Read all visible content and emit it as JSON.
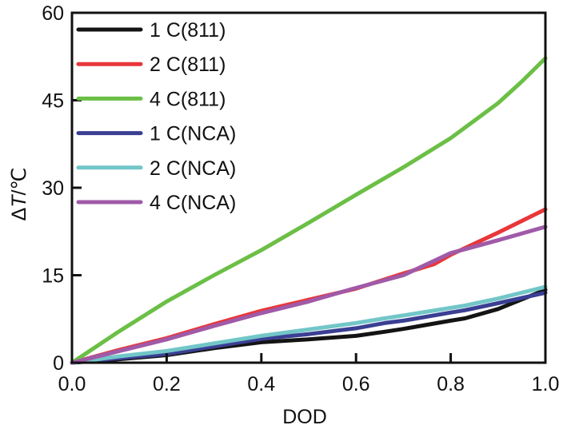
{
  "chart_data": {
    "type": "line",
    "title": "",
    "xlabel": "DOD",
    "ylabel_prefix": "Δ",
    "ylabel_var": "T",
    "ylabel_suffix": "/℃",
    "xlim": [
      0.0,
      1.0
    ],
    "ylim": [
      0,
      60
    ],
    "xticks": [
      0.0,
      0.2,
      0.4,
      0.6,
      0.8,
      1.0
    ],
    "xtick_labels": [
      "0.0",
      "0.2",
      "0.4",
      "0.6",
      "0.8",
      "1.0"
    ],
    "yticks": [
      0,
      15,
      30,
      45,
      60
    ],
    "ytick_labels": [
      "0",
      "15",
      "30",
      "45",
      "60"
    ],
    "grid": false,
    "legend_position": "top-left",
    "series": [
      {
        "name": "1 C(811)",
        "color": "#141414",
        "x": [
          0.0,
          0.1,
          0.2,
          0.3,
          0.4,
          0.5,
          0.6,
          0.66,
          0.7,
          0.8,
          0.83,
          0.9,
          1.0
        ],
        "y": [
          0.0,
          0.6,
          1.3,
          2.5,
          3.5,
          4.0,
          4.6,
          5.3,
          5.8,
          7.2,
          7.6,
          9.2,
          12.5
        ]
      },
      {
        "name": "2 C(811)",
        "color": "#e8373a",
        "x": [
          0.0,
          0.1,
          0.2,
          0.3,
          0.4,
          0.5,
          0.6,
          0.7,
          0.765,
          0.8,
          0.9,
          1.0
        ],
        "y": [
          0.0,
          2.2,
          4.2,
          6.6,
          8.9,
          10.8,
          12.7,
          15.3,
          16.9,
          18.5,
          22.3,
          26.3
        ]
      },
      {
        "name": "4 C(811)",
        "color": "#6bbf45",
        "x": [
          0.0,
          0.1,
          0.2,
          0.3,
          0.4,
          0.5,
          0.6,
          0.7,
          0.8,
          0.9,
          0.95,
          1.0
        ],
        "y": [
          0.0,
          5.4,
          10.5,
          15.0,
          19.3,
          24.0,
          28.8,
          33.5,
          38.5,
          44.5,
          48.2,
          52.2
        ]
      },
      {
        "name": "1 C(NCA)",
        "color": "#3a3f93",
        "x": [
          0.0,
          0.1,
          0.2,
          0.3,
          0.4,
          0.5,
          0.6,
          0.66,
          0.7,
          0.8,
          0.83,
          0.9,
          1.0
        ],
        "y": [
          0.0,
          0.8,
          1.5,
          2.8,
          4.1,
          4.9,
          5.9,
          6.8,
          7.2,
          8.6,
          9.0,
          10.2,
          12.0
        ]
      },
      {
        "name": "2 C(NCA)",
        "color": "#72c6c8",
        "x": [
          0.0,
          0.1,
          0.2,
          0.3,
          0.4,
          0.5,
          0.6,
          0.66,
          0.7,
          0.8,
          0.83,
          0.9,
          1.0
        ],
        "y": [
          0.0,
          1.1,
          2.0,
          3.3,
          4.6,
          5.7,
          6.8,
          7.6,
          8.1,
          9.4,
          9.8,
          11.0,
          13.0
        ]
      },
      {
        "name": "4 C(NCA)",
        "color": "#a05aa8",
        "x": [
          0.0,
          0.1,
          0.2,
          0.3,
          0.4,
          0.5,
          0.59,
          0.7,
          0.8,
          0.9,
          1.0
        ],
        "y": [
          0.0,
          2.0,
          4.0,
          6.3,
          8.5,
          10.5,
          12.6,
          15.0,
          18.8,
          21.0,
          23.3
        ]
      }
    ]
  }
}
